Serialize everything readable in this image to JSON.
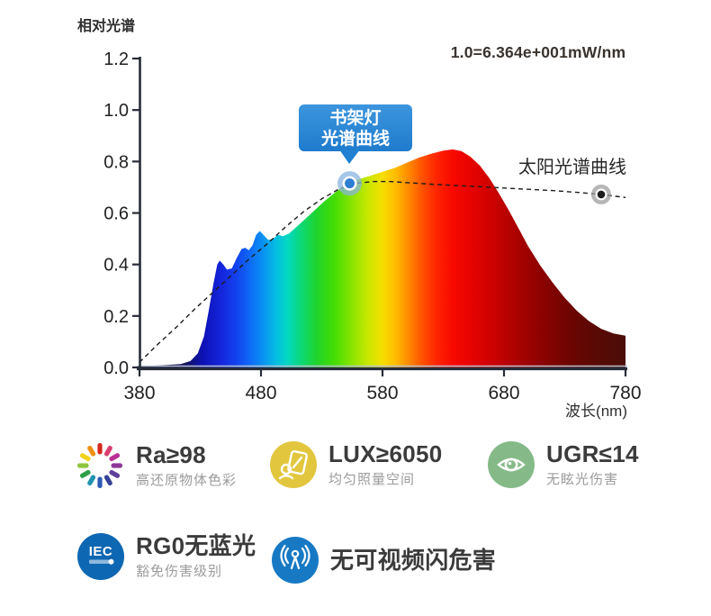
{
  "page": {
    "background": "#ffffff"
  },
  "colors": {
    "axis": "#262c38",
    "axis_light_stripe": "#b7c2d2",
    "sun_dash": "#1c1c1c",
    "callout": "#2b86d6",
    "lamp_marker_dot": "#2e7ed2",
    "lamp_marker_halo": "#8ab4e0",
    "sun_marker_dot": "#1d1d1d",
    "sun_marker_halo": "#9e9e9e"
  },
  "chart_data": {
    "type": "area",
    "ylabel": "相对光谱",
    "xlabel": "波长(nm)",
    "annotation": "1.0=6.364e+001mW/nm",
    "sun_label": "太阳光谱曲线",
    "lamp_callout": [
      "书架灯",
      "光谱曲线"
    ],
    "xlim": [
      380,
      780
    ],
    "ylim": [
      0,
      1.2
    ],
    "x_ticks": [
      380,
      480,
      580,
      680,
      780
    ],
    "y_ticks": [
      0.0,
      0.2,
      0.4,
      0.6,
      0.8,
      1.0,
      1.2
    ],
    "grid": false,
    "series": [
      {
        "name": "书架灯光谱曲线",
        "style": "filled-spectrum-area",
        "points": [
          [
            380,
            0.005
          ],
          [
            392,
            0.007
          ],
          [
            404,
            0.01
          ],
          [
            414,
            0.013
          ],
          [
            422,
            0.025
          ],
          [
            428,
            0.055
          ],
          [
            433,
            0.12
          ],
          [
            437,
            0.22
          ],
          [
            441,
            0.33
          ],
          [
            444,
            0.4
          ],
          [
            446,
            0.415
          ],
          [
            449,
            0.4
          ],
          [
            452,
            0.38
          ],
          [
            456,
            0.385
          ],
          [
            460,
            0.425
          ],
          [
            464,
            0.46
          ],
          [
            467,
            0.465
          ],
          [
            470,
            0.455
          ],
          [
            473,
            0.475
          ],
          [
            476,
            0.515
          ],
          [
            479,
            0.53
          ],
          [
            482,
            0.515
          ],
          [
            486,
            0.495
          ],
          [
            490,
            0.5
          ],
          [
            494,
            0.515
          ],
          [
            498,
            0.51
          ],
          [
            503,
            0.52
          ],
          [
            509,
            0.545
          ],
          [
            516,
            0.575
          ],
          [
            524,
            0.61
          ],
          [
            532,
            0.645
          ],
          [
            541,
            0.68
          ],
          [
            550,
            0.71
          ],
          [
            560,
            0.73
          ],
          [
            570,
            0.745
          ],
          [
            580,
            0.76
          ],
          [
            590,
            0.775
          ],
          [
            600,
            0.795
          ],
          [
            610,
            0.815
          ],
          [
            620,
            0.83
          ],
          [
            630,
            0.842
          ],
          [
            638,
            0.847
          ],
          [
            645,
            0.84
          ],
          [
            652,
            0.82
          ],
          [
            660,
            0.785
          ],
          [
            668,
            0.735
          ],
          [
            676,
            0.675
          ],
          [
            684,
            0.61
          ],
          [
            692,
            0.54
          ],
          [
            700,
            0.47
          ],
          [
            710,
            0.395
          ],
          [
            720,
            0.33
          ],
          [
            730,
            0.27
          ],
          [
            740,
            0.22
          ],
          [
            750,
            0.18
          ],
          [
            760,
            0.15
          ],
          [
            770,
            0.132
          ],
          [
            780,
            0.123
          ]
        ]
      },
      {
        "name": "太阳光谱曲线",
        "style": "dashed-line",
        "points": [
          [
            380,
            0.02
          ],
          [
            395,
            0.09
          ],
          [
            410,
            0.155
          ],
          [
            425,
            0.225
          ],
          [
            440,
            0.29
          ],
          [
            455,
            0.355
          ],
          [
            470,
            0.42
          ],
          [
            485,
            0.48
          ],
          [
            500,
            0.545
          ],
          [
            515,
            0.605
          ],
          [
            530,
            0.655
          ],
          [
            545,
            0.695
          ],
          [
            558,
            0.715
          ],
          [
            572,
            0.722
          ],
          [
            586,
            0.722
          ],
          [
            600,
            0.718
          ],
          [
            620,
            0.712
          ],
          [
            640,
            0.707
          ],
          [
            660,
            0.702
          ],
          [
            680,
            0.697
          ],
          [
            700,
            0.692
          ],
          [
            720,
            0.687
          ],
          [
            740,
            0.68
          ],
          [
            760,
            0.672
          ],
          [
            780,
            0.66
          ]
        ]
      }
    ],
    "markers": [
      {
        "name": "lamp-point",
        "x": 553,
        "y": 0.715
      },
      {
        "name": "sun-point",
        "x": 760,
        "y": 0.672
      }
    ],
    "gradient_stops": [
      {
        "nm": 380,
        "color": "#10102a"
      },
      {
        "nm": 418,
        "color": "#14145e"
      },
      {
        "nm": 432,
        "color": "#0d11b4"
      },
      {
        "nm": 448,
        "color": "#1526dd"
      },
      {
        "nm": 460,
        "color": "#1343ee"
      },
      {
        "nm": 472,
        "color": "#0e6ef6"
      },
      {
        "nm": 482,
        "color": "#0993f0"
      },
      {
        "nm": 492,
        "color": "#05bce4"
      },
      {
        "nm": 502,
        "color": "#03d9c2"
      },
      {
        "nm": 513,
        "color": "#0cd878"
      },
      {
        "nm": 526,
        "color": "#20d42c"
      },
      {
        "nm": 540,
        "color": "#42dd05"
      },
      {
        "nm": 555,
        "color": "#8ae400"
      },
      {
        "nm": 568,
        "color": "#c8e800"
      },
      {
        "nm": 580,
        "color": "#f6de00"
      },
      {
        "nm": 591,
        "color": "#ffbb00"
      },
      {
        "nm": 601,
        "color": "#ff8c00"
      },
      {
        "nm": 612,
        "color": "#ff5500"
      },
      {
        "nm": 624,
        "color": "#fe2600"
      },
      {
        "nm": 638,
        "color": "#f80800"
      },
      {
        "nm": 655,
        "color": "#e30300"
      },
      {
        "nm": 672,
        "color": "#c90200"
      },
      {
        "nm": 690,
        "color": "#ab0200"
      },
      {
        "nm": 710,
        "color": "#8d0200"
      },
      {
        "nm": 735,
        "color": "#6c0502"
      },
      {
        "nm": 758,
        "color": "#570a05"
      },
      {
        "nm": 780,
        "color": "#4a0d08"
      }
    ]
  },
  "badges": {
    "row1": [
      {
        "value": "Ra≥98",
        "sub": "高还原物体色彩",
        "icon": "color-wheel-icon",
        "wheel_colors": [
          "#d7281d",
          "#d84070",
          "#b93194",
          "#8d3798",
          "#5e3d9b",
          "#364197",
          "#2d5bb5",
          "#2193b0",
          "#2f9e49",
          "#8ec63f",
          "#f2d21b",
          "#ee8f12"
        ]
      },
      {
        "value": "LUX≥6050",
        "sub": "均匀照量空间",
        "icon": "illumination-icon",
        "color": "#e2c63e"
      },
      {
        "value": "UGR≤14",
        "sub": "无眩光伤害",
        "icon": "eye-icon",
        "color": "#85ba88"
      }
    ],
    "row2": [
      {
        "value": "RG0无蓝光",
        "sub": "豁免伤害级别",
        "icon": "iec-icon",
        "color": "#0e67b2",
        "icon_text": "IEC"
      },
      {
        "value": "无可视频闪危害",
        "sub": "",
        "icon": "flicker-icon",
        "color": "#1779c4"
      }
    ]
  }
}
